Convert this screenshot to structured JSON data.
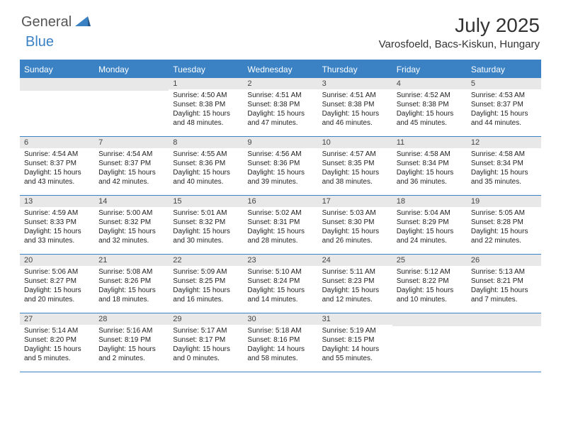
{
  "logo": {
    "general": "General",
    "blue": "Blue"
  },
  "title": "July 2025",
  "location": "Varosfoeld, Bacs-Kiskun, Hungary",
  "header_color": "#3b82c4",
  "day_headers": [
    "Sunday",
    "Monday",
    "Tuesday",
    "Wednesday",
    "Thursday",
    "Friday",
    "Saturday"
  ],
  "weeks": [
    [
      {
        "empty": true
      },
      {
        "empty": true
      },
      {
        "num": "1",
        "sunrise": "Sunrise: 4:50 AM",
        "sunset": "Sunset: 8:38 PM",
        "daylight": "Daylight: 15 hours and 48 minutes."
      },
      {
        "num": "2",
        "sunrise": "Sunrise: 4:51 AM",
        "sunset": "Sunset: 8:38 PM",
        "daylight": "Daylight: 15 hours and 47 minutes."
      },
      {
        "num": "3",
        "sunrise": "Sunrise: 4:51 AM",
        "sunset": "Sunset: 8:38 PM",
        "daylight": "Daylight: 15 hours and 46 minutes."
      },
      {
        "num": "4",
        "sunrise": "Sunrise: 4:52 AM",
        "sunset": "Sunset: 8:38 PM",
        "daylight": "Daylight: 15 hours and 45 minutes."
      },
      {
        "num": "5",
        "sunrise": "Sunrise: 4:53 AM",
        "sunset": "Sunset: 8:37 PM",
        "daylight": "Daylight: 15 hours and 44 minutes."
      }
    ],
    [
      {
        "num": "6",
        "sunrise": "Sunrise: 4:54 AM",
        "sunset": "Sunset: 8:37 PM",
        "daylight": "Daylight: 15 hours and 43 minutes."
      },
      {
        "num": "7",
        "sunrise": "Sunrise: 4:54 AM",
        "sunset": "Sunset: 8:37 PM",
        "daylight": "Daylight: 15 hours and 42 minutes."
      },
      {
        "num": "8",
        "sunrise": "Sunrise: 4:55 AM",
        "sunset": "Sunset: 8:36 PM",
        "daylight": "Daylight: 15 hours and 40 minutes."
      },
      {
        "num": "9",
        "sunrise": "Sunrise: 4:56 AM",
        "sunset": "Sunset: 8:36 PM",
        "daylight": "Daylight: 15 hours and 39 minutes."
      },
      {
        "num": "10",
        "sunrise": "Sunrise: 4:57 AM",
        "sunset": "Sunset: 8:35 PM",
        "daylight": "Daylight: 15 hours and 38 minutes."
      },
      {
        "num": "11",
        "sunrise": "Sunrise: 4:58 AM",
        "sunset": "Sunset: 8:34 PM",
        "daylight": "Daylight: 15 hours and 36 minutes."
      },
      {
        "num": "12",
        "sunrise": "Sunrise: 4:58 AM",
        "sunset": "Sunset: 8:34 PM",
        "daylight": "Daylight: 15 hours and 35 minutes."
      }
    ],
    [
      {
        "num": "13",
        "sunrise": "Sunrise: 4:59 AM",
        "sunset": "Sunset: 8:33 PM",
        "daylight": "Daylight: 15 hours and 33 minutes."
      },
      {
        "num": "14",
        "sunrise": "Sunrise: 5:00 AM",
        "sunset": "Sunset: 8:32 PM",
        "daylight": "Daylight: 15 hours and 32 minutes."
      },
      {
        "num": "15",
        "sunrise": "Sunrise: 5:01 AM",
        "sunset": "Sunset: 8:32 PM",
        "daylight": "Daylight: 15 hours and 30 minutes."
      },
      {
        "num": "16",
        "sunrise": "Sunrise: 5:02 AM",
        "sunset": "Sunset: 8:31 PM",
        "daylight": "Daylight: 15 hours and 28 minutes."
      },
      {
        "num": "17",
        "sunrise": "Sunrise: 5:03 AM",
        "sunset": "Sunset: 8:30 PM",
        "daylight": "Daylight: 15 hours and 26 minutes."
      },
      {
        "num": "18",
        "sunrise": "Sunrise: 5:04 AM",
        "sunset": "Sunset: 8:29 PM",
        "daylight": "Daylight: 15 hours and 24 minutes."
      },
      {
        "num": "19",
        "sunrise": "Sunrise: 5:05 AM",
        "sunset": "Sunset: 8:28 PM",
        "daylight": "Daylight: 15 hours and 22 minutes."
      }
    ],
    [
      {
        "num": "20",
        "sunrise": "Sunrise: 5:06 AM",
        "sunset": "Sunset: 8:27 PM",
        "daylight": "Daylight: 15 hours and 20 minutes."
      },
      {
        "num": "21",
        "sunrise": "Sunrise: 5:08 AM",
        "sunset": "Sunset: 8:26 PM",
        "daylight": "Daylight: 15 hours and 18 minutes."
      },
      {
        "num": "22",
        "sunrise": "Sunrise: 5:09 AM",
        "sunset": "Sunset: 8:25 PM",
        "daylight": "Daylight: 15 hours and 16 minutes."
      },
      {
        "num": "23",
        "sunrise": "Sunrise: 5:10 AM",
        "sunset": "Sunset: 8:24 PM",
        "daylight": "Daylight: 15 hours and 14 minutes."
      },
      {
        "num": "24",
        "sunrise": "Sunrise: 5:11 AM",
        "sunset": "Sunset: 8:23 PM",
        "daylight": "Daylight: 15 hours and 12 minutes."
      },
      {
        "num": "25",
        "sunrise": "Sunrise: 5:12 AM",
        "sunset": "Sunset: 8:22 PM",
        "daylight": "Daylight: 15 hours and 10 minutes."
      },
      {
        "num": "26",
        "sunrise": "Sunrise: 5:13 AM",
        "sunset": "Sunset: 8:21 PM",
        "daylight": "Daylight: 15 hours and 7 minutes."
      }
    ],
    [
      {
        "num": "27",
        "sunrise": "Sunrise: 5:14 AM",
        "sunset": "Sunset: 8:20 PM",
        "daylight": "Daylight: 15 hours and 5 minutes."
      },
      {
        "num": "28",
        "sunrise": "Sunrise: 5:16 AM",
        "sunset": "Sunset: 8:19 PM",
        "daylight": "Daylight: 15 hours and 2 minutes."
      },
      {
        "num": "29",
        "sunrise": "Sunrise: 5:17 AM",
        "sunset": "Sunset: 8:17 PM",
        "daylight": "Daylight: 15 hours and 0 minutes."
      },
      {
        "num": "30",
        "sunrise": "Sunrise: 5:18 AM",
        "sunset": "Sunset: 8:16 PM",
        "daylight": "Daylight: 14 hours and 58 minutes."
      },
      {
        "num": "31",
        "sunrise": "Sunrise: 5:19 AM",
        "sunset": "Sunset: 8:15 PM",
        "daylight": "Daylight: 14 hours and 55 minutes."
      },
      {
        "empty": true
      },
      {
        "empty": true
      }
    ]
  ]
}
